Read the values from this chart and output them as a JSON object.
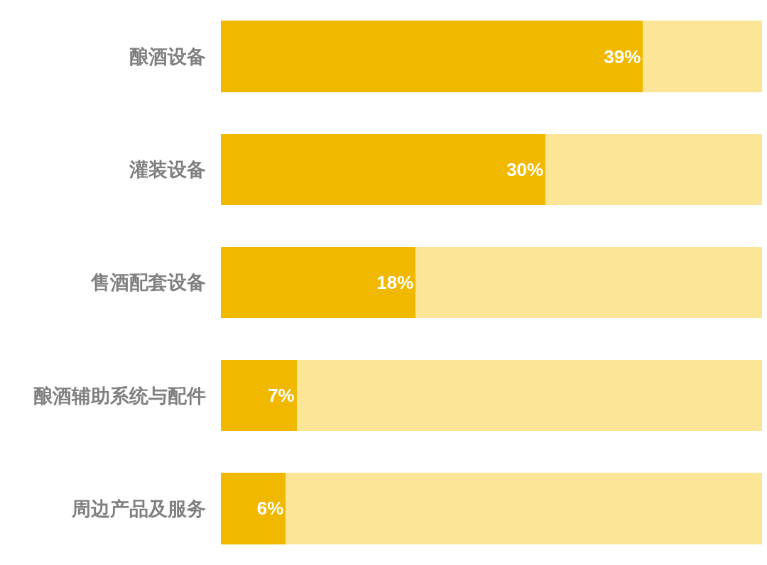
{
  "chart_data": {
    "type": "bar",
    "orientation": "horizontal",
    "stacked": true,
    "categories": [
      "酿酒设备",
      "灌装设备",
      "售酒配套设备",
      "酿酒辅助系统与配件",
      "周边产品及服务"
    ],
    "series": [
      {
        "color": "#f0b900",
        "values": [
          39,
          30,
          18,
          7,
          6
        ],
        "value_labels": [
          "39%",
          "30%",
          "18%",
          "7%",
          "6%"
        ]
      },
      {
        "color": "#fde597",
        "values": [
          11,
          20,
          32,
          43,
          44
        ]
      }
    ],
    "xlim": [
      0,
      50
    ],
    "tick_labels": "y"
  }
}
